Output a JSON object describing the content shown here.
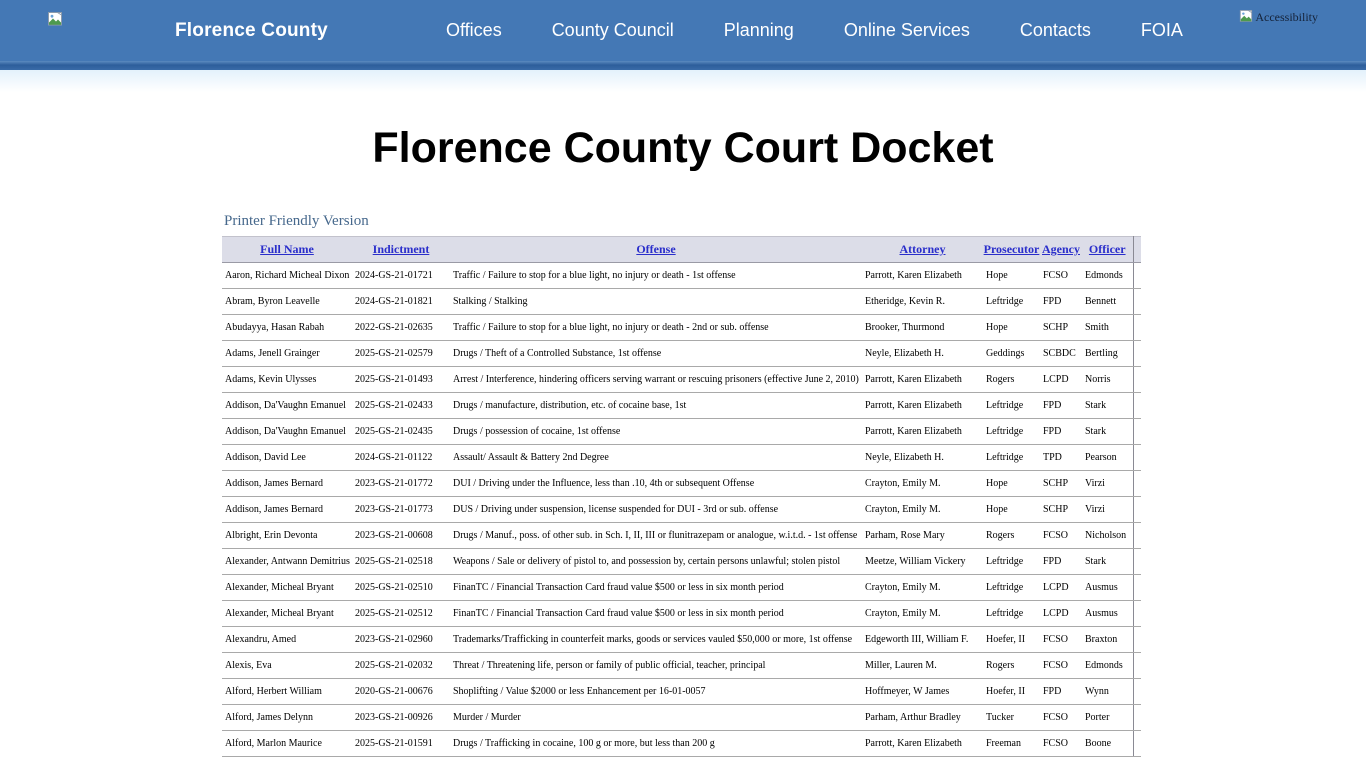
{
  "nav": {
    "brand": "Florence County",
    "items": [
      "Offices",
      "County Council",
      "Planning",
      "Online Services",
      "Contacts",
      "FOIA"
    ],
    "accessibility_alt": "Accessibility"
  },
  "page": {
    "title": "Florence County Court Docket",
    "printer_link": "Printer Friendly Version"
  },
  "table": {
    "headers": [
      "Full Name",
      "Indictment",
      "Offense",
      "Attorney",
      "Prosecutor",
      "Agency",
      "Officer"
    ],
    "header_keys": [
      "full-name",
      "indictment",
      "offense",
      "attorney",
      "prosecutor",
      "agency",
      "officer"
    ],
    "rows": [
      [
        "Aaron, Richard Micheal Dixon",
        "2024-GS-21-01721",
        "Traffic / Failure to stop for a blue light, no injury or death - 1st offense",
        "Parrott, Karen Elizabeth",
        "Hope",
        "FCSO",
        "Edmonds"
      ],
      [
        "Abram, Byron Leavelle",
        "2024-GS-21-01821",
        "Stalking / Stalking",
        "Etheridge, Kevin R.",
        "Leftridge",
        "FPD",
        "Bennett"
      ],
      [
        "Abudayya, Hasan Rabah",
        "2022-GS-21-02635",
        "Traffic / Failure to stop for a blue light, no injury or death - 2nd or sub. offense",
        "Brooker, Thurmond",
        "Hope",
        "SCHP",
        "Smith"
      ],
      [
        "Adams, Jenell Grainger",
        "2025-GS-21-02579",
        "Drugs / Theft of a Controlled Substance, 1st offense",
        "Neyle, Elizabeth H.",
        "Geddings",
        "SCBDC",
        "Bertling"
      ],
      [
        "Adams, Kevin Ulysses",
        "2025-GS-21-01493",
        "Arrest / Interference, hindering officers serving warrant or rescuing prisoners (effective June 2, 2010)",
        "Parrott, Karen Elizabeth",
        "Rogers",
        "LCPD",
        "Norris"
      ],
      [
        "Addison, Da'Vaughn Emanuel",
        "2025-GS-21-02433",
        "Drugs / manufacture, distribution, etc. of cocaine base, 1st",
        "Parrott, Karen Elizabeth",
        "Leftridge",
        "FPD",
        "Stark"
      ],
      [
        "Addison, Da'Vaughn Emanuel",
        "2025-GS-21-02435",
        "Drugs / possession of cocaine, 1st offense",
        "Parrott, Karen Elizabeth",
        "Leftridge",
        "FPD",
        "Stark"
      ],
      [
        "Addison, David Lee",
        "2024-GS-21-01122",
        "Assault/ Assault & Battery 2nd Degree",
        "Neyle, Elizabeth H.",
        "Leftridge",
        "TPD",
        "Pearson"
      ],
      [
        "Addison, James Bernard",
        "2023-GS-21-01772",
        "DUI / Driving under the Influence, less than .10, 4th or subsequent Offense",
        "Crayton, Emily M.",
        "Hope",
        "SCHP",
        "Virzi"
      ],
      [
        "Addison, James Bernard",
        "2023-GS-21-01773",
        "DUS / Driving under suspension, license suspended for DUI - 3rd or sub. offense",
        "Crayton, Emily M.",
        "Hope",
        "SCHP",
        "Virzi"
      ],
      [
        "Albright, Erin Devonta",
        "2023-GS-21-00608",
        "Drugs / Manuf., poss. of other sub. in Sch. I, II, III or flunitrazepam or analogue, w.i.t.d. - 1st offense",
        "Parham, Rose Mary",
        "Rogers",
        "FCSO",
        "Nicholson"
      ],
      [
        "Alexander, Antwann Demitrius",
        "2025-GS-21-02518",
        "Weapons / Sale or delivery of pistol to, and possession by, certain persons unlawful; stolen pistol",
        "Meetze, William Vickery",
        "Leftridge",
        "FPD",
        "Stark"
      ],
      [
        "Alexander, Micheal Bryant",
        "2025-GS-21-02510",
        "FinanTC / Financial Transaction Card fraud value $500 or less in six month period",
        "Crayton, Emily M.",
        "Leftridge",
        "LCPD",
        "Ausmus"
      ],
      [
        "Alexander, Micheal Bryant",
        "2025-GS-21-02512",
        "FinanTC / Financial Transaction Card fraud value $500 or less in six month period",
        "Crayton, Emily M.",
        "Leftridge",
        "LCPD",
        "Ausmus"
      ],
      [
        "Alexandru, Amed",
        "2023-GS-21-02960",
        "Trademarks/Trafficking in counterfeit marks, goods or services vauled $50,000 or more, 1st offense",
        "Edgeworth III, William F.",
        "Hoefer, II",
        "FCSO",
        "Braxton"
      ],
      [
        "Alexis, Eva",
        "2025-GS-21-02032",
        "Threat / Threatening life, person or family of public official, teacher, principal",
        "Miller, Lauren M.",
        "Rogers",
        "FCSO",
        "Edmonds"
      ],
      [
        "Alford, Herbert William",
        "2020-GS-21-00676",
        "Shoplifting / Value $2000 or less Enhancement per 16-01-0057",
        "Hoffmeyer, W James",
        "Hoefer, II",
        "FPD",
        "Wynn"
      ],
      [
        "Alford, James Delynn",
        "2023-GS-21-00926",
        "Murder / Murder",
        "Parham, Arthur Bradley",
        "Tucker",
        "FCSO",
        "Porter"
      ],
      [
        "Alford, Marlon Maurice",
        "2025-GS-21-01591",
        "Drugs / Trafficking in cocaine, 100 g or more, but less than 200 g",
        "Parrott, Karen Elizabeth",
        "Freeman",
        "FCSO",
        "Boone"
      ]
    ]
  },
  "colors": {
    "header_bar": "#4478b5",
    "header_strip_dark": "#2d5e9b",
    "table_header_bg": "#dcdde8",
    "table_header_link": "#2a2ecb",
    "printer_link": "#46688c",
    "nav_text": "#ffffff"
  }
}
